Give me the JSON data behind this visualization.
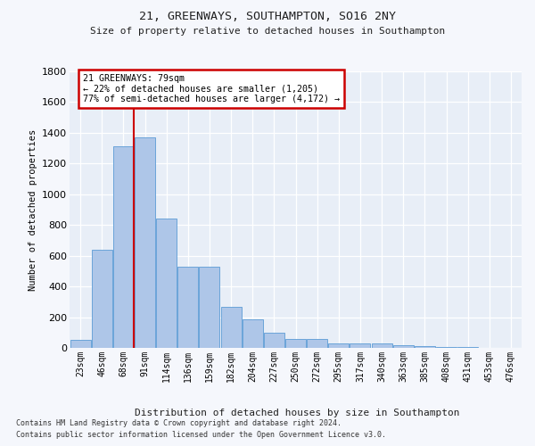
{
  "title1": "21, GREENWAYS, SOUTHAMPTON, SO16 2NY",
  "title2": "Size of property relative to detached houses in Southampton",
  "xlabel": "Distribution of detached houses by size in Southampton",
  "ylabel": "Number of detached properties",
  "categories": [
    "23sqm",
    "46sqm",
    "68sqm",
    "91sqm",
    "114sqm",
    "136sqm",
    "159sqm",
    "182sqm",
    "204sqm",
    "227sqm",
    "250sqm",
    "272sqm",
    "295sqm",
    "317sqm",
    "340sqm",
    "363sqm",
    "385sqm",
    "408sqm",
    "431sqm",
    "453sqm",
    "476sqm"
  ],
  "values": [
    50,
    640,
    1310,
    1370,
    840,
    530,
    530,
    270,
    185,
    100,
    60,
    60,
    30,
    30,
    28,
    18,
    12,
    5,
    3,
    2,
    2
  ],
  "bar_color": "#aec6e8",
  "bar_edge_color": "#5b9bd5",
  "vline_color": "#cc0000",
  "vline_x": 2.48,
  "annotation_text": "21 GREENWAYS: 79sqm\n← 22% of detached houses are smaller (1,205)\n77% of semi-detached houses are larger (4,172) →",
  "annotation_box_facecolor": "#ffffff",
  "annotation_box_edgecolor": "#cc0000",
  "ylim": [
    0,
    1800
  ],
  "yticks": [
    0,
    200,
    400,
    600,
    800,
    1000,
    1200,
    1400,
    1600,
    1800
  ],
  "footer1": "Contains HM Land Registry data © Crown copyright and database right 2024.",
  "footer2": "Contains public sector information licensed under the Open Government Licence v3.0.",
  "fig_bg": "#f5f7fc",
  "plot_bg": "#e8eef7",
  "grid_color": "#ffffff"
}
